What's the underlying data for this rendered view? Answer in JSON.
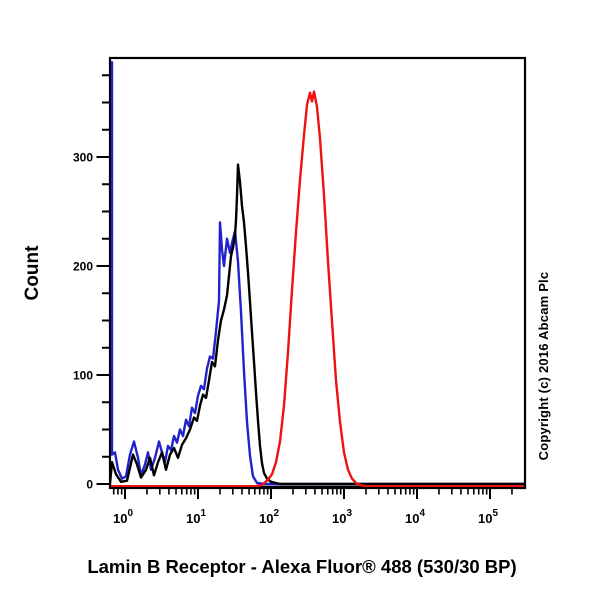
{
  "title": "Lamin B Receptor - Alexa Fluor® 488 (530/30 BP)",
  "copyright": "Copyright (c) 2016 Abcam Plc",
  "axes": {
    "y_label": "Count",
    "y_ticks": [
      0,
      100,
      200,
      300
    ],
    "y_minor_step": 25,
    "y_minor_max": 375,
    "x_ticks": [
      {
        "base": "10",
        "exp": "0"
      },
      {
        "base": "10",
        "exp": "1"
      },
      {
        "base": "10",
        "exp": "2"
      },
      {
        "base": "10",
        "exp": "3"
      },
      {
        "base": "10",
        "exp": "4"
      },
      {
        "base": "10",
        "exp": "5"
      }
    ]
  },
  "colors": {
    "frame": "#000000",
    "black_series": "#000000",
    "blue_series": "#2222cc",
    "red_series": "#ee1111"
  },
  "chart_data": {
    "type": "line",
    "subtype": "flow-cytometry-histogram",
    "title": "",
    "xlabel": "Lamin B Receptor - Alexa Fluor® 488 (530/30 BP)",
    "ylabel": "Count",
    "x_scale": "log10",
    "xlim_log10": [
      -0.205,
      5.479
    ],
    "ylim": [
      0,
      391
    ],
    "grid": false,
    "legend": "none",
    "series": [
      {
        "label": "blue",
        "color": "#2222cc",
        "points_log10x_count": [
          [
            -0.178,
            387
          ],
          [
            -0.178,
            27
          ],
          [
            -0.137,
            29
          ],
          [
            -0.096,
            13
          ],
          [
            -0.041,
            5
          ],
          [
            0.014,
            7
          ],
          [
            0.068,
            27
          ],
          [
            0.123,
            39
          ],
          [
            0.178,
            24
          ],
          [
            0.219,
            8
          ],
          [
            0.274,
            18
          ],
          [
            0.315,
            29
          ],
          [
            0.356,
            13
          ],
          [
            0.411,
            24
          ],
          [
            0.466,
            39
          ],
          [
            0.507,
            29
          ],
          [
            0.548,
            20
          ],
          [
            0.589,
            35
          ],
          [
            0.63,
            31
          ],
          [
            0.671,
            44
          ],
          [
            0.712,
            38
          ],
          [
            0.753,
            50
          ],
          [
            0.795,
            44
          ],
          [
            0.836,
            59
          ],
          [
            0.877,
            53
          ],
          [
            0.918,
            70
          ],
          [
            0.959,
            65
          ],
          [
            1.0,
            81
          ],
          [
            1.041,
            90
          ],
          [
            1.082,
            87
          ],
          [
            1.123,
            106
          ],
          [
            1.164,
            117
          ],
          [
            1.205,
            115
          ],
          [
            1.247,
            140
          ],
          [
            1.288,
            168
          ],
          [
            1.301,
            240
          ],
          [
            1.329,
            215
          ],
          [
            1.356,
            200
          ],
          [
            1.397,
            225
          ],
          [
            1.438,
            212
          ],
          [
            1.466,
            221
          ],
          [
            1.507,
            232
          ],
          [
            1.548,
            204
          ],
          [
            1.589,
            158
          ],
          [
            1.63,
            103
          ],
          [
            1.671,
            57
          ],
          [
            1.712,
            26
          ],
          [
            1.753,
            7
          ],
          [
            1.808,
            1
          ],
          [
            1.918,
            0
          ],
          [
            5.479,
            0
          ]
        ]
      },
      {
        "label": "black",
        "color": "#000000",
        "points_log10x_count": [
          [
            -0.205,
            0
          ],
          [
            -0.178,
            20
          ],
          [
            -0.123,
            9
          ],
          [
            -0.055,
            2
          ],
          [
            0.027,
            3
          ],
          [
            0.11,
            27
          ],
          [
            0.164,
            18
          ],
          [
            0.219,
            6
          ],
          [
            0.288,
            13
          ],
          [
            0.342,
            24
          ],
          [
            0.397,
            8
          ],
          [
            0.452,
            20
          ],
          [
            0.507,
            29
          ],
          [
            0.562,
            13
          ],
          [
            0.616,
            27
          ],
          [
            0.671,
            33
          ],
          [
            0.726,
            24
          ],
          [
            0.781,
            36
          ],
          [
            0.836,
            42
          ],
          [
            0.89,
            50
          ],
          [
            0.945,
            61
          ],
          [
            0.986,
            58
          ],
          [
            1.027,
            72
          ],
          [
            1.068,
            82
          ],
          [
            1.11,
            79
          ],
          [
            1.151,
            95
          ],
          [
            1.192,
            112
          ],
          [
            1.233,
            108
          ],
          [
            1.274,
            132
          ],
          [
            1.315,
            150
          ],
          [
            1.356,
            160
          ],
          [
            1.397,
            173
          ],
          [
            1.425,
            191
          ],
          [
            1.452,
            209
          ],
          [
            1.479,
            217
          ],
          [
            1.507,
            228
          ],
          [
            1.521,
            242
          ],
          [
            1.534,
            264
          ],
          [
            1.548,
            293
          ],
          [
            1.575,
            277
          ],
          [
            1.603,
            255
          ],
          [
            1.63,
            240
          ],
          [
            1.658,
            218
          ],
          [
            1.685,
            194
          ],
          [
            1.712,
            167
          ],
          [
            1.74,
            139
          ],
          [
            1.767,
            112
          ],
          [
            1.795,
            84
          ],
          [
            1.822,
            58
          ],
          [
            1.849,
            35
          ],
          [
            1.877,
            19
          ],
          [
            1.904,
            10
          ],
          [
            1.945,
            5
          ],
          [
            2.0,
            2
          ],
          [
            2.123,
            0
          ],
          [
            5.479,
            0
          ]
        ]
      },
      {
        "label": "red",
        "color": "#ee1111",
        "points_log10x_count": [
          [
            -0.205,
            -2
          ],
          [
            1.781,
            -2
          ],
          [
            1.877,
            -1
          ],
          [
            1.959,
            4
          ],
          [
            2.014,
            9
          ],
          [
            2.068,
            20
          ],
          [
            2.123,
            39
          ],
          [
            2.178,
            72
          ],
          [
            2.233,
            121
          ],
          [
            2.288,
            178
          ],
          [
            2.342,
            231
          ],
          [
            2.397,
            279
          ],
          [
            2.452,
            320
          ],
          [
            2.493,
            348
          ],
          [
            2.534,
            359
          ],
          [
            2.562,
            351
          ],
          [
            2.589,
            360
          ],
          [
            2.63,
            346
          ],
          [
            2.671,
            317
          ],
          [
            2.726,
            265
          ],
          [
            2.781,
            204
          ],
          [
            2.836,
            149
          ],
          [
            2.89,
            95
          ],
          [
            2.945,
            57
          ],
          [
            3.0,
            29
          ],
          [
            3.055,
            13
          ],
          [
            3.11,
            5
          ],
          [
            3.178,
            0
          ],
          [
            3.288,
            -2
          ],
          [
            5.479,
            -2
          ]
        ]
      }
    ]
  }
}
